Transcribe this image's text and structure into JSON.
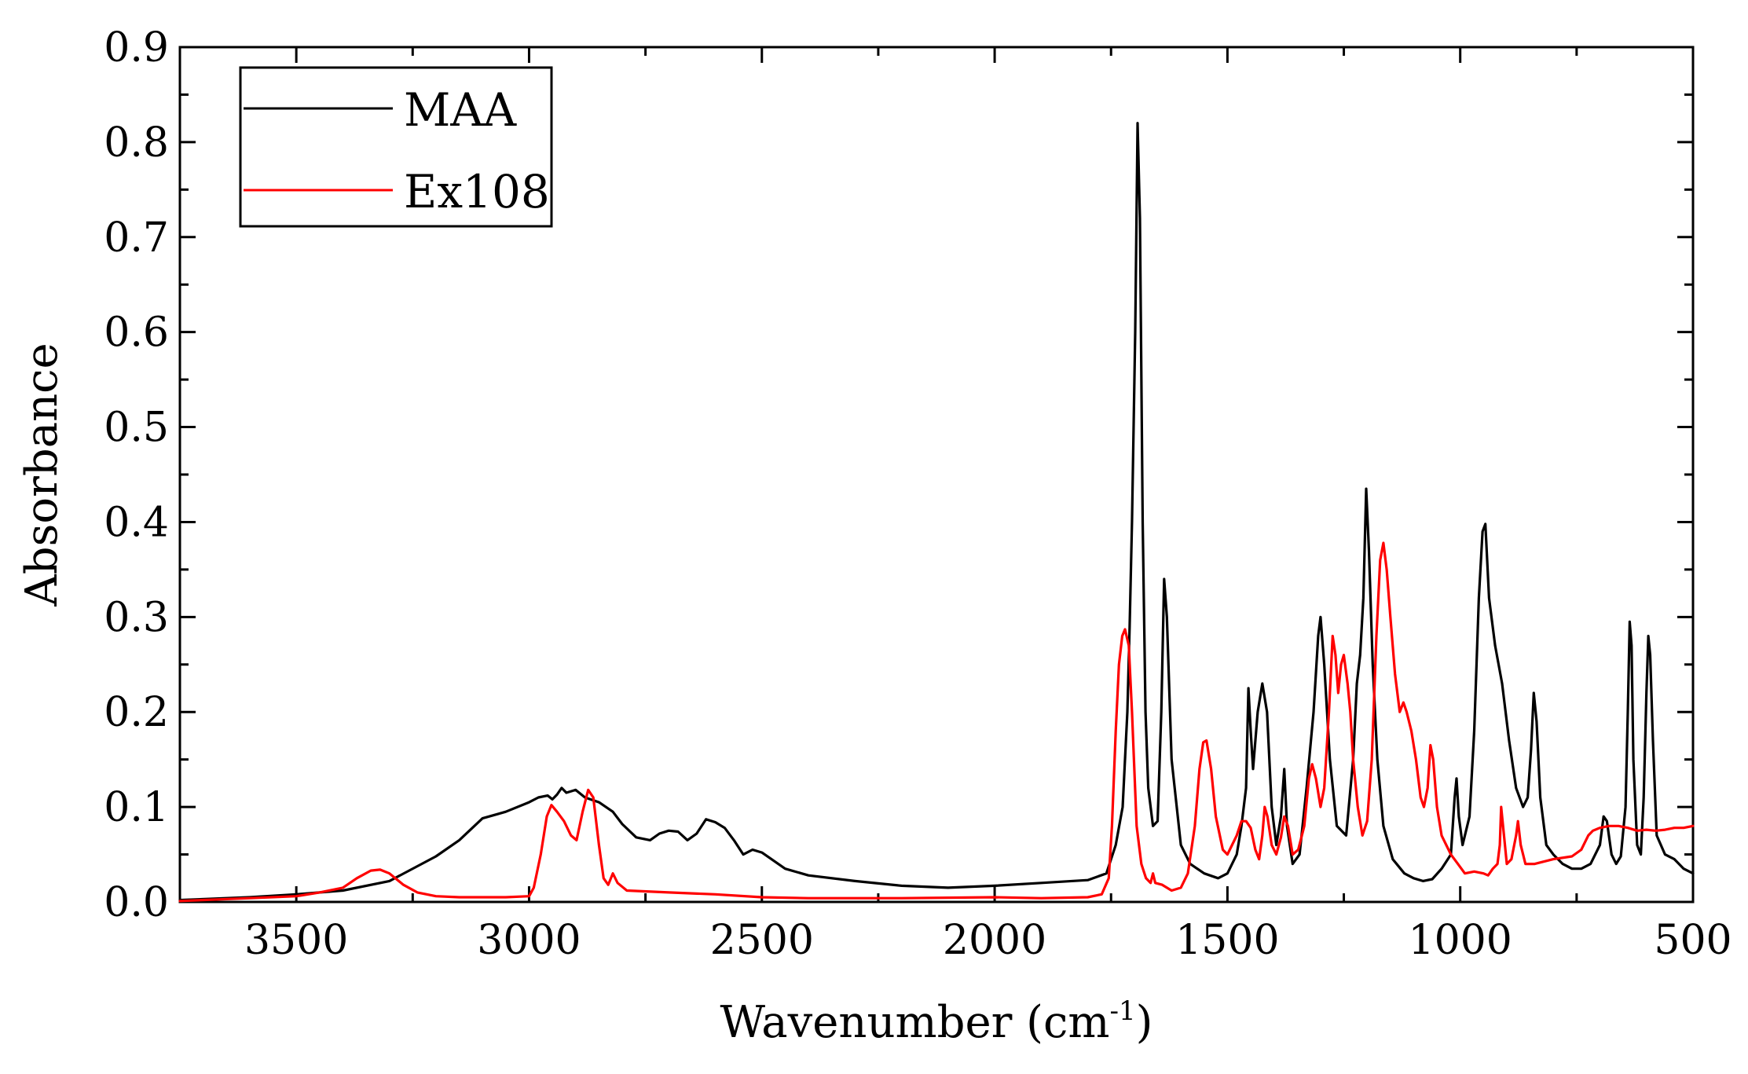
{
  "chart_data": {
    "type": "line",
    "title": "",
    "xlabel": "Wavenumber (cm",
    "xlabel_superscript": "-1",
    "xlabel_suffix": ")",
    "ylabel": "Absorbance",
    "xlim": [
      3750,
      500
    ],
    "ylim": [
      0.0,
      0.9
    ],
    "x_reversed": true,
    "xticks": [
      3500,
      3000,
      2500,
      2000,
      1500,
      1000,
      500
    ],
    "xtick_labels": [
      "3500",
      "3000",
      "2500",
      "2000",
      "1500",
      "1000",
      "500"
    ],
    "yticks": [
      0.0,
      0.1,
      0.2,
      0.3,
      0.4,
      0.5,
      0.6,
      0.7,
      0.8,
      0.9
    ],
    "ytick_labels": [
      "0.0",
      "0.1",
      "0.2",
      "0.3",
      "0.4",
      "0.5",
      "0.6",
      "0.7",
      "0.8",
      "0.9"
    ],
    "grid": false,
    "legend_position": "top-left",
    "series": [
      {
        "name": "MAA",
        "color": "#000000",
        "points": [
          [
            3750,
            0.002
          ],
          [
            3600,
            0.005
          ],
          [
            3500,
            0.008
          ],
          [
            3400,
            0.012
          ],
          [
            3300,
            0.022
          ],
          [
            3200,
            0.048
          ],
          [
            3150,
            0.065
          ],
          [
            3100,
            0.088
          ],
          [
            3050,
            0.095
          ],
          [
            3000,
            0.105
          ],
          [
            2980,
            0.11
          ],
          [
            2960,
            0.112
          ],
          [
            2950,
            0.108
          ],
          [
            2940,
            0.113
          ],
          [
            2930,
            0.12
          ],
          [
            2920,
            0.115
          ],
          [
            2900,
            0.118
          ],
          [
            2880,
            0.11
          ],
          [
            2850,
            0.105
          ],
          [
            2820,
            0.095
          ],
          [
            2800,
            0.082
          ],
          [
            2770,
            0.068
          ],
          [
            2740,
            0.065
          ],
          [
            2720,
            0.072
          ],
          [
            2700,
            0.075
          ],
          [
            2680,
            0.074
          ],
          [
            2660,
            0.065
          ],
          [
            2640,
            0.072
          ],
          [
            2620,
            0.087
          ],
          [
            2600,
            0.084
          ],
          [
            2580,
            0.078
          ],
          [
            2560,
            0.065
          ],
          [
            2540,
            0.05
          ],
          [
            2520,
            0.055
          ],
          [
            2500,
            0.052
          ],
          [
            2450,
            0.035
          ],
          [
            2400,
            0.028
          ],
          [
            2300,
            0.022
          ],
          [
            2200,
            0.017
          ],
          [
            2100,
            0.015
          ],
          [
            2000,
            0.017
          ],
          [
            1900,
            0.02
          ],
          [
            1800,
            0.023
          ],
          [
            1760,
            0.03
          ],
          [
            1740,
            0.06
          ],
          [
            1725,
            0.1
          ],
          [
            1715,
            0.2
          ],
          [
            1710,
            0.29
          ],
          [
            1705,
            0.4
          ],
          [
            1698,
            0.6
          ],
          [
            1693,
            0.82
          ],
          [
            1688,
            0.72
          ],
          [
            1682,
            0.4
          ],
          [
            1676,
            0.2
          ],
          [
            1670,
            0.12
          ],
          [
            1660,
            0.08
          ],
          [
            1650,
            0.085
          ],
          [
            1642,
            0.2
          ],
          [
            1636,
            0.34
          ],
          [
            1630,
            0.3
          ],
          [
            1620,
            0.15
          ],
          [
            1600,
            0.06
          ],
          [
            1580,
            0.04
          ],
          [
            1550,
            0.03
          ],
          [
            1520,
            0.025
          ],
          [
            1500,
            0.03
          ],
          [
            1480,
            0.05
          ],
          [
            1470,
            0.08
          ],
          [
            1460,
            0.12
          ],
          [
            1455,
            0.225
          ],
          [
            1450,
            0.18
          ],
          [
            1445,
            0.14
          ],
          [
            1435,
            0.2
          ],
          [
            1425,
            0.23
          ],
          [
            1415,
            0.2
          ],
          [
            1405,
            0.1
          ],
          [
            1395,
            0.06
          ],
          [
            1385,
            0.09
          ],
          [
            1378,
            0.14
          ],
          [
            1372,
            0.08
          ],
          [
            1360,
            0.04
          ],
          [
            1345,
            0.05
          ],
          [
            1330,
            0.12
          ],
          [
            1315,
            0.2
          ],
          [
            1305,
            0.28
          ],
          [
            1300,
            0.3
          ],
          [
            1292,
            0.25
          ],
          [
            1280,
            0.15
          ],
          [
            1265,
            0.08
          ],
          [
            1245,
            0.07
          ],
          [
            1230,
            0.15
          ],
          [
            1222,
            0.23
          ],
          [
            1215,
            0.26
          ],
          [
            1208,
            0.32
          ],
          [
            1202,
            0.435
          ],
          [
            1196,
            0.37
          ],
          [
            1188,
            0.25
          ],
          [
            1178,
            0.15
          ],
          [
            1165,
            0.08
          ],
          [
            1145,
            0.045
          ],
          [
            1120,
            0.03
          ],
          [
            1100,
            0.025
          ],
          [
            1080,
            0.022
          ],
          [
            1060,
            0.024
          ],
          [
            1040,
            0.035
          ],
          [
            1020,
            0.05
          ],
          [
            1012,
            0.11
          ],
          [
            1008,
            0.13
          ],
          [
            1003,
            0.09
          ],
          [
            995,
            0.06
          ],
          [
            980,
            0.09
          ],
          [
            970,
            0.18
          ],
          [
            960,
            0.32
          ],
          [
            952,
            0.39
          ],
          [
            946,
            0.398
          ],
          [
            938,
            0.32
          ],
          [
            925,
            0.27
          ],
          [
            910,
            0.23
          ],
          [
            895,
            0.17
          ],
          [
            880,
            0.12
          ],
          [
            865,
            0.1
          ],
          [
            855,
            0.11
          ],
          [
            848,
            0.16
          ],
          [
            842,
            0.22
          ],
          [
            836,
            0.19
          ],
          [
            828,
            0.11
          ],
          [
            815,
            0.06
          ],
          [
            800,
            0.05
          ],
          [
            780,
            0.04
          ],
          [
            760,
            0.035
          ],
          [
            740,
            0.035
          ],
          [
            720,
            0.04
          ],
          [
            700,
            0.06
          ],
          [
            692,
            0.09
          ],
          [
            685,
            0.085
          ],
          [
            675,
            0.05
          ],
          [
            665,
            0.04
          ],
          [
            655,
            0.048
          ],
          [
            645,
            0.1
          ],
          [
            640,
            0.2
          ],
          [
            636,
            0.295
          ],
          [
            632,
            0.27
          ],
          [
            628,
            0.15
          ],
          [
            620,
            0.06
          ],
          [
            612,
            0.05
          ],
          [
            606,
            0.11
          ],
          [
            600,
            0.22
          ],
          [
            596,
            0.28
          ],
          [
            592,
            0.26
          ],
          [
            586,
            0.17
          ],
          [
            578,
            0.07
          ],
          [
            560,
            0.05
          ],
          [
            540,
            0.045
          ],
          [
            520,
            0.035
          ],
          [
            500,
            0.03
          ]
        ]
      },
      {
        "name": "Ex108",
        "color": "#ff0000",
        "points": [
          [
            3750,
            0.001
          ],
          [
            3600,
            0.004
          ],
          [
            3500,
            0.006
          ],
          [
            3450,
            0.01
          ],
          [
            3400,
            0.015
          ],
          [
            3370,
            0.025
          ],
          [
            3340,
            0.033
          ],
          [
            3320,
            0.034
          ],
          [
            3300,
            0.03
          ],
          [
            3270,
            0.018
          ],
          [
            3240,
            0.01
          ],
          [
            3200,
            0.006
          ],
          [
            3150,
            0.005
          ],
          [
            3100,
            0.005
          ],
          [
            3050,
            0.005
          ],
          [
            3000,
            0.006
          ],
          [
            2990,
            0.015
          ],
          [
            2975,
            0.05
          ],
          [
            2962,
            0.09
          ],
          [
            2952,
            0.102
          ],
          [
            2940,
            0.095
          ],
          [
            2925,
            0.085
          ],
          [
            2910,
            0.07
          ],
          [
            2898,
            0.065
          ],
          [
            2885,
            0.095
          ],
          [
            2873,
            0.118
          ],
          [
            2862,
            0.11
          ],
          [
            2850,
            0.06
          ],
          [
            2840,
            0.025
          ],
          [
            2830,
            0.018
          ],
          [
            2820,
            0.03
          ],
          [
            2810,
            0.02
          ],
          [
            2790,
            0.012
          ],
          [
            2700,
            0.01
          ],
          [
            2600,
            0.008
          ],
          [
            2500,
            0.005
          ],
          [
            2400,
            0.004
          ],
          [
            2200,
            0.004
          ],
          [
            2000,
            0.005
          ],
          [
            1900,
            0.004
          ],
          [
            1800,
            0.005
          ],
          [
            1770,
            0.008
          ],
          [
            1755,
            0.025
          ],
          [
            1748,
            0.08
          ],
          [
            1740,
            0.18
          ],
          [
            1733,
            0.25
          ],
          [
            1726,
            0.28
          ],
          [
            1720,
            0.287
          ],
          [
            1712,
            0.27
          ],
          [
            1705,
            0.2
          ],
          [
            1695,
            0.08
          ],
          [
            1685,
            0.04
          ],
          [
            1675,
            0.025
          ],
          [
            1665,
            0.02
          ],
          [
            1660,
            0.03
          ],
          [
            1655,
            0.02
          ],
          [
            1640,
            0.018
          ],
          [
            1620,
            0.012
          ],
          [
            1600,
            0.015
          ],
          [
            1585,
            0.03
          ],
          [
            1570,
            0.08
          ],
          [
            1560,
            0.14
          ],
          [
            1552,
            0.168
          ],
          [
            1545,
            0.17
          ],
          [
            1535,
            0.14
          ],
          [
            1525,
            0.09
          ],
          [
            1510,
            0.055
          ],
          [
            1500,
            0.05
          ],
          [
            1490,
            0.06
          ],
          [
            1480,
            0.07
          ],
          [
            1470,
            0.085
          ],
          [
            1460,
            0.085
          ],
          [
            1450,
            0.078
          ],
          [
            1440,
            0.055
          ],
          [
            1432,
            0.045
          ],
          [
            1425,
            0.07
          ],
          [
            1420,
            0.1
          ],
          [
            1414,
            0.09
          ],
          [
            1405,
            0.06
          ],
          [
            1395,
            0.05
          ],
          [
            1385,
            0.068
          ],
          [
            1378,
            0.09
          ],
          [
            1370,
            0.08
          ],
          [
            1360,
            0.05
          ],
          [
            1348,
            0.055
          ],
          [
            1335,
            0.08
          ],
          [
            1325,
            0.13
          ],
          [
            1318,
            0.145
          ],
          [
            1310,
            0.13
          ],
          [
            1300,
            0.1
          ],
          [
            1292,
            0.12
          ],
          [
            1282,
            0.2
          ],
          [
            1274,
            0.28
          ],
          [
            1268,
            0.26
          ],
          [
            1262,
            0.22
          ],
          [
            1256,
            0.25
          ],
          [
            1250,
            0.26
          ],
          [
            1242,
            0.23
          ],
          [
            1236,
            0.2
          ],
          [
            1230,
            0.15
          ],
          [
            1220,
            0.1
          ],
          [
            1210,
            0.07
          ],
          [
            1200,
            0.085
          ],
          [
            1190,
            0.15
          ],
          [
            1180,
            0.28
          ],
          [
            1172,
            0.36
          ],
          [
            1165,
            0.378
          ],
          [
            1158,
            0.35
          ],
          [
            1150,
            0.3
          ],
          [
            1140,
            0.24
          ],
          [
            1130,
            0.2
          ],
          [
            1122,
            0.21
          ],
          [
            1115,
            0.2
          ],
          [
            1105,
            0.18
          ],
          [
            1095,
            0.15
          ],
          [
            1085,
            0.11
          ],
          [
            1078,
            0.1
          ],
          [
            1070,
            0.12
          ],
          [
            1064,
            0.165
          ],
          [
            1058,
            0.15
          ],
          [
            1050,
            0.1
          ],
          [
            1040,
            0.07
          ],
          [
            1030,
            0.06
          ],
          [
            1020,
            0.05
          ],
          [
            1005,
            0.04
          ],
          [
            990,
            0.03
          ],
          [
            970,
            0.032
          ],
          [
            950,
            0.03
          ],
          [
            940,
            0.028
          ],
          [
            930,
            0.035
          ],
          [
            920,
            0.04
          ],
          [
            915,
            0.06
          ],
          [
            912,
            0.1
          ],
          [
            908,
            0.08
          ],
          [
            900,
            0.04
          ],
          [
            890,
            0.045
          ],
          [
            880,
            0.07
          ],
          [
            876,
            0.085
          ],
          [
            870,
            0.06
          ],
          [
            860,
            0.04
          ],
          [
            840,
            0.04
          ],
          [
            800,
            0.045
          ],
          [
            760,
            0.048
          ],
          [
            740,
            0.055
          ],
          [
            725,
            0.07
          ],
          [
            715,
            0.075
          ],
          [
            700,
            0.078
          ],
          [
            680,
            0.08
          ],
          [
            660,
            0.08
          ],
          [
            640,
            0.078
          ],
          [
            620,
            0.075
          ],
          [
            600,
            0.076
          ],
          [
            580,
            0.075
          ],
          [
            560,
            0.076
          ],
          [
            540,
            0.078
          ],
          [
            520,
            0.078
          ],
          [
            500,
            0.08
          ]
        ]
      }
    ]
  }
}
